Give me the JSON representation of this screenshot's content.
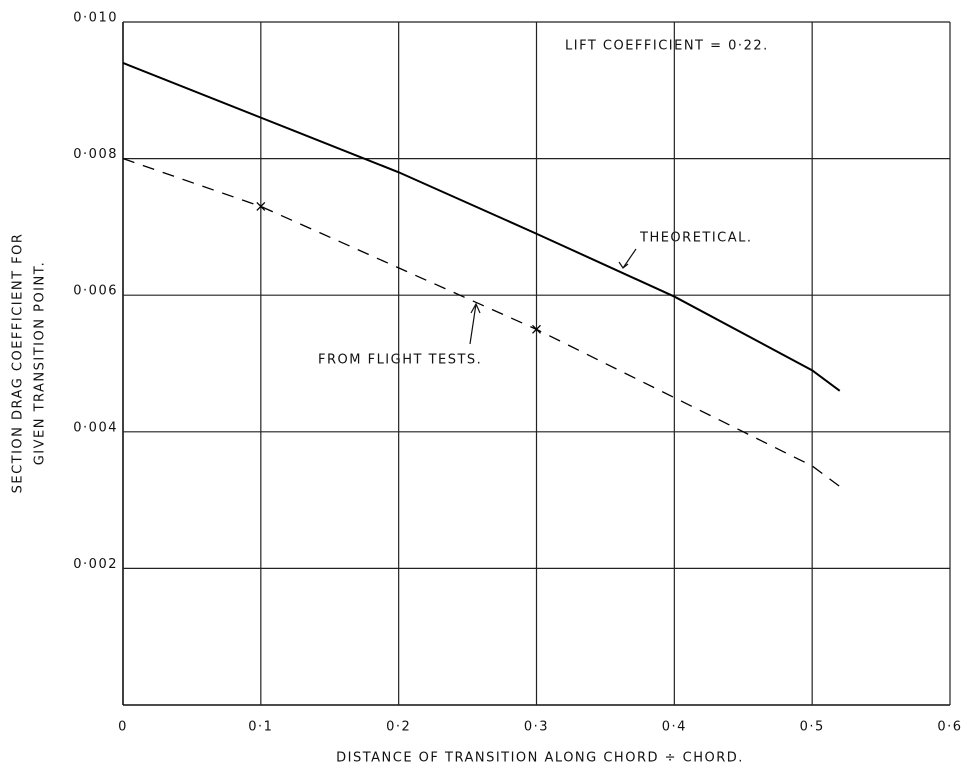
{
  "chart_data": {
    "type": "line",
    "xlabel": "DISTANCE OF TRANSITION ALONG CHORD ÷ CHORD.",
    "ylabel": [
      "SECTION DRAG COEFFICIENT FOR",
      "GIVEN TRANSITION POINT."
    ],
    "annotation": "LIFT COEFFICIENT = 0·22.",
    "xlim": [
      0,
      0.6
    ],
    "ylim": [
      0,
      0.01
    ],
    "xticks": [
      0,
      {
        "value": 0.1,
        "label": "0·1"
      },
      {
        "value": 0.2,
        "label": "0·2"
      },
      {
        "value": 0.3,
        "label": "0·3"
      },
      {
        "value": 0.4,
        "label": "0·4"
      },
      {
        "value": 0.5,
        "label": "0·5"
      },
      {
        "value": 0.6,
        "label": "0·6"
      }
    ],
    "yticks": [
      {
        "value": 0.002,
        "label": "0·002"
      },
      {
        "value": 0.004,
        "label": "0·004"
      },
      {
        "value": 0.006,
        "label": "0·006"
      },
      {
        "value": 0.008,
        "label": "0·008"
      },
      {
        "value": 0.01,
        "label": "0·010"
      }
    ],
    "grid": true,
    "series": [
      {
        "name": "THEORETICAL.",
        "color": "#000000",
        "line_style": "solid",
        "x": [
          0,
          0.1,
          0.2,
          0.3,
          0.4,
          0.5,
          0.52
        ],
        "values": [
          0.0094,
          0.0086,
          0.0078,
          0.0069,
          0.00598,
          0.0049,
          0.0046
        ]
      },
      {
        "name": "FROM FLIGHT TESTS.",
        "color": "#000000",
        "line_style": "dashed",
        "x": [
          0,
          0.1,
          0.2,
          0.3,
          0.4,
          0.5,
          0.52
        ],
        "values": [
          0.008,
          0.0073,
          0.0064,
          0.0055,
          0.0045,
          0.0035,
          0.0032
        ],
        "marked_points": {
          "x": [
            0.1,
            0.3
          ],
          "values": [
            0.0073,
            0.0055
          ]
        }
      }
    ]
  }
}
